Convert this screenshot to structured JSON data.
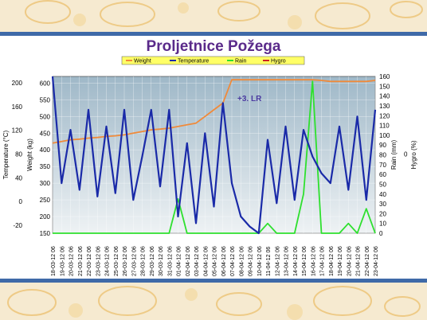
{
  "chart_data": {
    "type": "line",
    "title": "Proljetnice Požega",
    "annotation": "+3. LR",
    "legend": [
      {
        "name": "Weight",
        "color": "#f08a3a"
      },
      {
        "name": "Temperature",
        "color": "#1a2aa8"
      },
      {
        "name": "Rain",
        "color": "#2ee02e"
      },
      {
        "name": "Hygro",
        "color": "#cc2020"
      }
    ],
    "axes": {
      "temperature": {
        "label": "Temperature (°C)",
        "ticks": [
          "200",
          "160",
          "120",
          "80",
          "40",
          "0",
          "-20"
        ]
      },
      "weight": {
        "label": "Weight (kg)",
        "ticks": [
          "600",
          "550",
          "500",
          "450",
          "400",
          "350",
          "300",
          "250",
          "200",
          "150"
        ],
        "ylim": [
          150,
          620
        ]
      },
      "rain": {
        "label": "Rain (mm)",
        "ticks": [
          "160",
          "150",
          "140",
          "130",
          "120",
          "110",
          "100",
          "90",
          "80",
          "70",
          "60",
          "50",
          "40",
          "30",
          "20",
          "10",
          "0"
        ],
        "ylim": [
          0,
          160
        ]
      },
      "hygro": {
        "label": "Hygro (%)",
        "ticks": [
          "0"
        ]
      }
    },
    "categories": [
      "18-03-12 06",
      "19-03-12 06",
      "20-03-12 06",
      "21-03-12 06",
      "22-03-12 06",
      "23-03-12 06",
      "24-03-12 06",
      "25-03-12 06",
      "26-03-12 06",
      "27-03-12 06",
      "28-03-12 06",
      "29-03-12 06",
      "30-03-12 06",
      "31-03-12 06",
      "01-04-12 06",
      "02-04-12 06",
      "03-04-12 06",
      "04-04-12 06",
      "05-04-12 06",
      "06-04-12 06",
      "07-04-12 06",
      "08-04-12 06",
      "09-04-12 06",
      "10-04-12 06",
      "11-04-12 06",
      "12-04-12 06",
      "13-04-12 06",
      "14-04-12 06",
      "15-04-12 06",
      "16-04-12 06",
      "17-04-12 06",
      "18-04-12 06",
      "19-04-12 06",
      "20-04-12 06",
      "21-04-12 06",
      "22-04-12 06",
      "23-04-12 06"
    ],
    "weight_values": [
      420,
      425,
      430,
      432,
      435,
      437,
      440,
      442,
      445,
      450,
      455,
      460,
      462,
      465,
      470,
      475,
      480,
      500,
      520,
      540,
      610,
      610,
      610,
      610,
      610,
      610,
      610,
      610,
      610,
      610,
      608,
      605,
      605,
      605,
      605,
      605,
      608
    ],
    "temperature_values": [
      620,
      300,
      460,
      280,
      520,
      260,
      470,
      270,
      520,
      250,
      380,
      520,
      290,
      520,
      200,
      420,
      180,
      450,
      230,
      540,
      300,
      200,
      170,
      150,
      430,
      240,
      470,
      250,
      460,
      380,
      330,
      300,
      470,
      280,
      500,
      250,
      520
    ],
    "rain_values": [
      0,
      0,
      0,
      0,
      0,
      0,
      0,
      0,
      0,
      0,
      0,
      0,
      0,
      0,
      35,
      0,
      0,
      0,
      0,
      0,
      0,
      0,
      0,
      0,
      10,
      0,
      0,
      0,
      40,
      155,
      0,
      0,
      0,
      10,
      0,
      25,
      0
    ]
  }
}
